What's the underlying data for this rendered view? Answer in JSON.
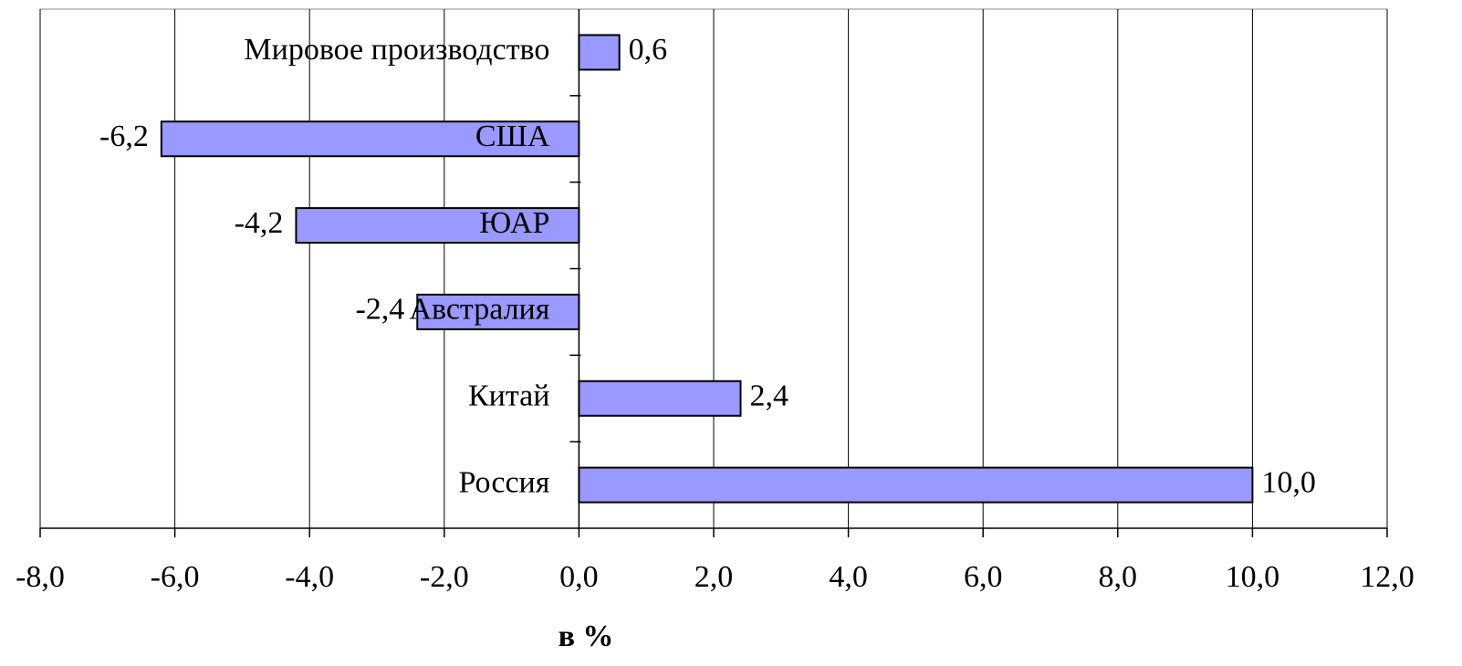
{
  "chart_data": {
    "type": "bar",
    "orientation": "horizontal",
    "categories": [
      "Мировое производство",
      "США",
      "ЮАР",
      "Австралия",
      "Китай",
      "Россия"
    ],
    "values": [
      0.6,
      -6.2,
      -4.2,
      -2.4,
      2.4,
      10.0
    ],
    "value_labels": [
      "0,6",
      "-6,2",
      "-4,2",
      "-2,4",
      "2,4",
      "10,0"
    ],
    "color": "#9999ff",
    "x_label": "в %",
    "xlim": [
      -8,
      12
    ],
    "xticks": [
      {
        "value": -8,
        "label": "-8,0"
      },
      {
        "value": -6,
        "label": "-6,0"
      },
      {
        "value": -4,
        "label": "-4,0"
      },
      {
        "value": -2,
        "label": "-2,0"
      },
      {
        "value": 0,
        "label": "0,0"
      },
      {
        "value": 2,
        "label": "2,0"
      },
      {
        "value": 4,
        "label": "4,0"
      },
      {
        "value": 6,
        "label": "6,0"
      },
      {
        "value": 8,
        "label": "8,0"
      },
      {
        "value": 10,
        "label": "10,0"
      },
      {
        "value": 12,
        "label": "12,0"
      }
    ],
    "grid": true
  }
}
